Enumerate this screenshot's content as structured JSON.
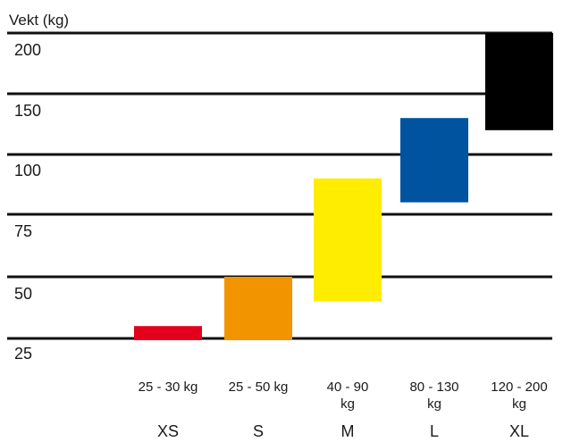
{
  "chart_data": {
    "type": "bar",
    "subtype": "floating-range",
    "ylabel": "Vekt (kg)",
    "y_ticks": [
      {
        "label": "200",
        "value": 200
      },
      {
        "label": "150",
        "value": 150
      },
      {
        "label": "100",
        "value": 100
      },
      {
        "label": "75",
        "value": 75
      },
      {
        "label": "50",
        "value": 50
      },
      {
        "label": "25",
        "value": 25
      }
    ],
    "y_scale": "non-linear (ticks evenly spaced)",
    "grid": true,
    "categories": [
      {
        "size": "XS",
        "range_lines": [
          "25 - 30 kg"
        ],
        "low": 25,
        "high": 30,
        "color": "#e2001a"
      },
      {
        "size": "S",
        "range_lines": [
          "25 - 50 kg"
        ],
        "low": 25,
        "high": 50,
        "color": "#f29400"
      },
      {
        "size": "M",
        "range_lines": [
          "40 - 90",
          "kg"
        ],
        "low": 40,
        "high": 90,
        "color": "#ffed00"
      },
      {
        "size": "L",
        "range_lines": [
          "80 - 130",
          "kg"
        ],
        "low": 80,
        "high": 130,
        "color": "#00539f"
      },
      {
        "size": "XL",
        "range_lines": [
          "120 - 200",
          "kg"
        ],
        "low": 120,
        "high": 200,
        "color": "#000000"
      }
    ]
  }
}
